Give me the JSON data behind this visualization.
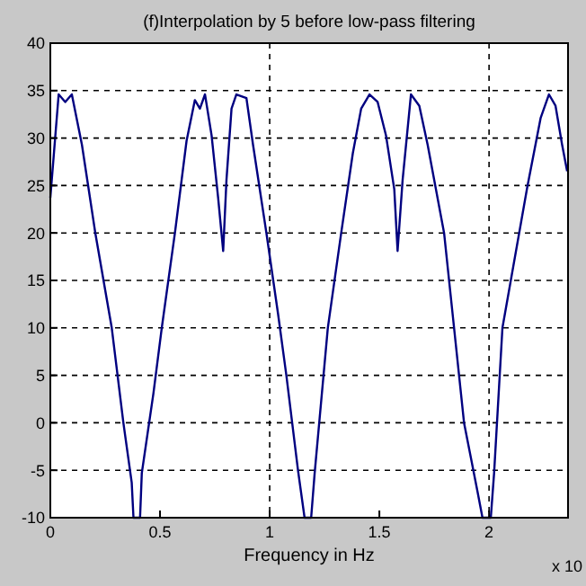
{
  "chart_data": {
    "type": "line",
    "title": "(f)Interpolation by 5 before low-pass filtering",
    "xlabel": "Frequency in Hz",
    "annotations": [
      "x 10"
    ],
    "xlim": [
      0,
      2.36
    ],
    "xticks": [
      0,
      0.5,
      1,
      1.5,
      2
    ],
    "ylim": [
      -10,
      40
    ],
    "yticks": [
      -10,
      -5,
      0,
      5,
      10,
      15,
      20,
      25,
      30,
      35,
      40
    ],
    "grid": "y",
    "ref_lines": [
      {
        "axis": "x",
        "value": 1,
        "line_style": "dashed",
        "color": "#000000"
      },
      {
        "axis": "x",
        "value": 2,
        "line_style": "dashed",
        "color": "#000000"
      }
    ],
    "series": [
      {
        "color": "#000080",
        "line_style": "solid",
        "x": [
          0,
          0.038,
          0.068,
          0.098,
          0.144,
          0.205,
          0.28,
          0.333,
          0.371,
          0.379,
          0.409,
          0.417,
          0.47,
          0.508,
          0.568,
          0.621,
          0.659,
          0.682,
          0.705,
          0.735,
          0.765,
          0.788,
          0.803,
          0.826,
          0.848,
          0.894,
          0.924,
          0.985,
          1.038,
          1.076,
          1.129,
          1.159,
          1.189,
          1.205,
          1.265,
          1.326,
          1.379,
          1.417,
          1.455,
          1.492,
          1.53,
          1.568,
          1.583,
          1.606,
          1.644,
          1.682,
          1.72,
          1.795,
          1.886,
          1.947,
          1.97,
          2.008,
          2.023,
          2.061,
          2.174,
          2.235,
          2.273,
          2.303,
          2.333,
          2.356
        ],
        "values": [
          23.7,
          34.6,
          33.8,
          34.6,
          29.3,
          20,
          10,
          0,
          -6.3,
          -10,
          -10,
          -5.3,
          3.1,
          10,
          20,
          29.7,
          34,
          33.1,
          34.6,
          30.3,
          23.7,
          18.1,
          25.6,
          33.1,
          34.6,
          34.2,
          29.3,
          20,
          11.5,
          5,
          -5,
          -10,
          -10,
          -5.3,
          10,
          20,
          28.4,
          33.1,
          34.6,
          33.8,
          30.3,
          24.6,
          18.1,
          25.6,
          34.6,
          33.4,
          29.3,
          20,
          0,
          -7.2,
          -10,
          -10,
          -5.3,
          10,
          24.8,
          32.1,
          34.6,
          33.4,
          29.3,
          26.5
        ]
      }
    ]
  }
}
